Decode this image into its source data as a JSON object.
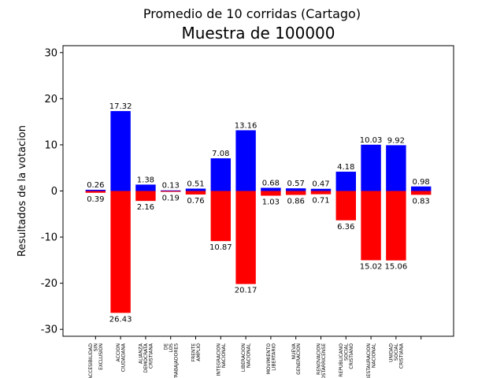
{
  "chart_data": {
    "type": "bar",
    "suptitle": "Promedio de 10 corridas (Cartago)",
    "title": "Muestra de 100000",
    "xlabel": "",
    "ylabel": "Resultados de la votacion",
    "ylim": [
      -31.5,
      31.5
    ],
    "yticks": [
      -30,
      -20,
      -10,
      0,
      10,
      20,
      30
    ],
    "grid": false,
    "legend": "none",
    "colors": {
      "positive": "#0000ff",
      "negative": "#ff0000"
    },
    "categories": [
      [
        "ACCESIBILIDAD",
        "SIN",
        "EXCLUSION"
      ],
      [
        "ACCION",
        "CIUDADANA"
      ],
      [
        "ALIANZA",
        "DEMOCRATA",
        "CRISTIANA"
      ],
      [
        "DE",
        "LOS",
        "TRABAJADORES"
      ],
      [
        "FRENTE",
        "AMPLIO"
      ],
      [
        "INTEGRACION",
        "NACIONAL"
      ],
      [
        "LIBERACION",
        "NACIONAL"
      ],
      [
        "MOVIMIENTO",
        "LIBERTARIO"
      ],
      [
        "NUEVA",
        "GENERACION"
      ],
      [
        "RENOVACION",
        "COSTARRICENSE"
      ],
      [
        "REPUBLICANO",
        "SOCIAL",
        "CRISTIANO"
      ],
      [
        "RESTAURACION",
        "NACIONAL"
      ],
      [
        "UNIDAD",
        "SOCIAL",
        "CRISTIANA"
      ],
      [
        ""
      ]
    ],
    "series": [
      {
        "values": [
          0.26,
          17.32,
          1.38,
          0.13,
          0.51,
          7.08,
          13.16,
          0.68,
          0.57,
          0.47,
          4.18,
          10.03,
          9.92,
          0.98
        ],
        "labels": [
          "0.26",
          "17.32",
          "1.38",
          "0.13",
          "0.51",
          "7.08",
          "13.16",
          "0.68",
          "0.57",
          "0.47",
          "4.18",
          "10.03",
          "9.92",
          "0.98"
        ]
      },
      {
        "values": [
          -0.39,
          -26.43,
          -2.16,
          -0.19,
          -0.76,
          -10.87,
          -20.17,
          -1.03,
          -0.86,
          -0.71,
          -6.36,
          -15.02,
          -15.06,
          -0.83
        ],
        "labels": [
          "0.39",
          "26.43",
          "2.16",
          "0.19",
          "0.76",
          "10.87",
          "20.17",
          "1.03",
          "0.86",
          "0.71",
          "6.36",
          "15.02",
          "15.06",
          "0.83"
        ]
      }
    ]
  }
}
